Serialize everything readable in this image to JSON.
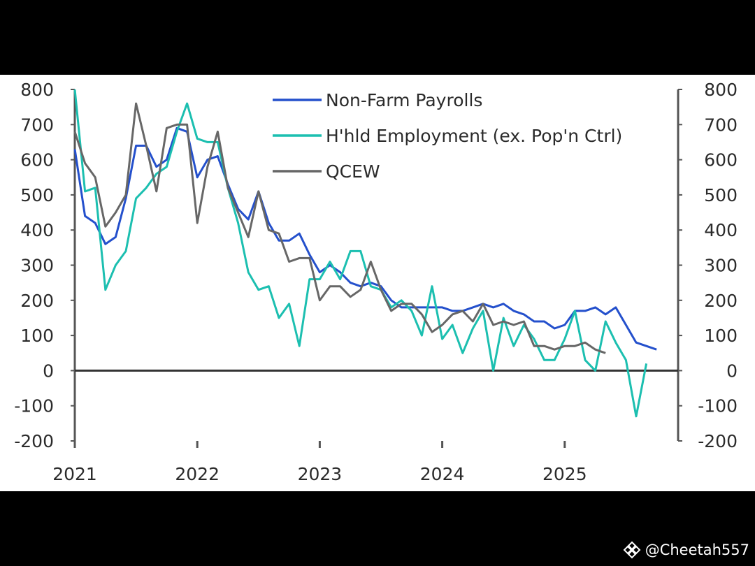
{
  "chart_data": {
    "type": "line",
    "title": "",
    "xlabel": "",
    "ylabel": "",
    "x_tick_labels": [
      "2021",
      "2022",
      "2023",
      "2024",
      "2025"
    ],
    "y_ticks": [
      800,
      700,
      600,
      500,
      400,
      300,
      200,
      100,
      0,
      -100,
      -200
    ],
    "ylim": [
      -200,
      800
    ],
    "x_start": "2021-01",
    "grid": false,
    "legend_position": "top-right",
    "series": [
      {
        "name": "Non-Farm Payrolls",
        "color": "#2450cc",
        "values": [
          630,
          440,
          420,
          360,
          380,
          490,
          640,
          640,
          580,
          600,
          690,
          680,
          550,
          600,
          610,
          530,
          460,
          430,
          510,
          420,
          370,
          370,
          390,
          330,
          280,
          300,
          280,
          250,
          240,
          250,
          240,
          200,
          180,
          180,
          180,
          180,
          180,
          170,
          170,
          180,
          190,
          180,
          190,
          170,
          160,
          140,
          140,
          120,
          130,
          170,
          170,
          180,
          160,
          180,
          130,
          80,
          70,
          60
        ]
      },
      {
        "name": "H'hld Employment (ex. Pop'n Ctrl)",
        "color": "#1cbfb0",
        "values": [
          800,
          510,
          520,
          230,
          300,
          340,
          490,
          520,
          560,
          580,
          680,
          760,
          660,
          650,
          650,
          520,
          420,
          280,
          230,
          240,
          150,
          190,
          70,
          260,
          260,
          310,
          260,
          340,
          340,
          240,
          230,
          180,
          200,
          170,
          100,
          240,
          90,
          130,
          50,
          120,
          170,
          0,
          150,
          70,
          130,
          90,
          30,
          30,
          90,
          170,
          30,
          0,
          140,
          80,
          30,
          -130,
          20
        ]
      },
      {
        "name": "QCEW",
        "color": "#676767",
        "values": [
          680,
          590,
          550,
          410,
          450,
          500,
          760,
          640,
          510,
          690,
          700,
          700,
          420,
          580,
          680,
          520,
          450,
          380,
          510,
          400,
          390,
          310,
          320,
          320,
          200,
          240,
          240,
          210,
          230,
          310,
          230,
          170,
          190,
          190,
          160,
          110,
          130,
          160,
          170,
          140,
          190,
          130,
          140,
          130,
          140,
          70,
          70,
          60,
          70,
          70,
          80,
          60,
          50
        ]
      }
    ]
  },
  "watermark": {
    "handle": "@Cheetah557",
    "icon": "binance-logo-icon"
  }
}
